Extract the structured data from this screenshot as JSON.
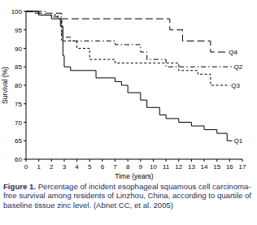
{
  "chart_data": {
    "type": "step",
    "x_label": "Time (years)",
    "y_label": "Survival (%)",
    "caption_label": "Figure 1.",
    "caption": "Percentage of incident esophageal squamous cell carcinoma-free survival among residents of Linzhou, China, according to quartile of baseline tissue zinc level. (Abnet CC, et al. 2005)",
    "xlim": [
      0,
      17
    ],
    "xticks": [
      0,
      1,
      2,
      3,
      4,
      5,
      6,
      7,
      8,
      9,
      10,
      11,
      12,
      13,
      14,
      15,
      16,
      17
    ],
    "ylim": [
      60,
      100
    ],
    "yticks": [
      60,
      65,
      70,
      75,
      80,
      85,
      90,
      95,
      100
    ],
    "grid": false,
    "series": [
      {
        "name": "Q4",
        "color": "#000000",
        "line_style": "long-dash",
        "x": [
          0,
          0.7,
          2.8,
          11.3,
          12.3,
          14.5,
          15.8
        ],
        "values": [
          100,
          99.5,
          98,
          95,
          92,
          89,
          89
        ]
      },
      {
        "name": "Q2",
        "color": "#000000",
        "line_style": "dash-dot",
        "x": [
          0,
          1.5,
          2.0,
          2.8,
          3.5,
          7.0,
          9.0,
          9.5,
          11.0,
          16.2
        ],
        "values": [
          100,
          99,
          98.5,
          93,
          92,
          91,
          89,
          87,
          85,
          85
        ]
      },
      {
        "name": "Q3",
        "color": "#000000",
        "line_style": "short-dash",
        "x": [
          0,
          1.0,
          2.5,
          2.8,
          4.0,
          5.0,
          7.0,
          12.0,
          13.5,
          14.5,
          16.0
        ],
        "values": [
          100,
          99,
          98,
          92,
          90,
          87,
          86,
          84,
          83,
          80,
          80
        ]
      },
      {
        "name": "Q1",
        "color": "#000000",
        "line_style": "solid",
        "x": [
          0,
          1.0,
          2.0,
          2.7,
          2.9,
          3.0,
          3.5,
          5.5,
          7.0,
          7.5,
          8.0,
          9.0,
          9.5,
          10.5,
          11.0,
          12.0,
          13.0,
          14.0,
          15.0,
          15.8,
          16.2
        ],
        "values": [
          100,
          99,
          98,
          96,
          88,
          85,
          84,
          82,
          81,
          80,
          78,
          76,
          74,
          72,
          71,
          70,
          69,
          68,
          67,
          65,
          65
        ]
      }
    ]
  }
}
